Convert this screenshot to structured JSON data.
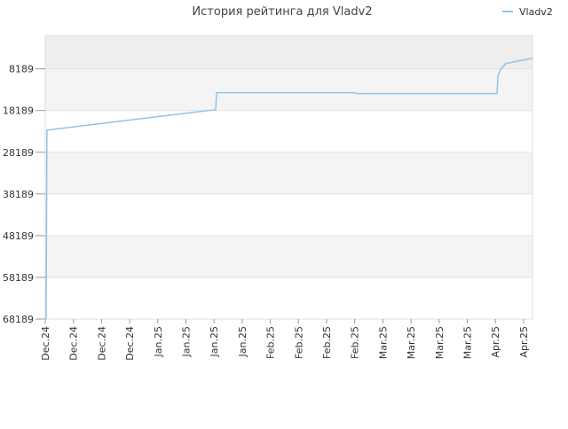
{
  "chart_data": {
    "type": "line",
    "title": "История рейтинга для Vladv2",
    "categories": [
      "Dec.24",
      "Dec.24",
      "Dec.24",
      "Dec.24",
      "Jan.25",
      "Jan.25",
      "Jan.25",
      "Jan.25",
      "Feb.25",
      "Feb.25",
      "Feb.25",
      "Feb.25",
      "Mar.25",
      "Mar.25",
      "Mar.25",
      "Mar.25",
      "Apr.25",
      "Apr.25"
    ],
    "xlim": [
      0,
      17.32
    ],
    "series": [
      {
        "name": "Vladv2",
        "color": "#90c3ea",
        "x": [
          0.03,
          0.06,
          6.06,
          6.09,
          11.01,
          11.07,
          16.06,
          16.09,
          16.18,
          16.37,
          17.32
        ],
        "values": [
          68189,
          22870,
          17976,
          13934,
          13934,
          14146,
          14146,
          9891,
          8402,
          6912,
          5636
        ]
      }
    ],
    "ylim": [
      68189,
      189
    ],
    "yticks": [
      8189,
      18189,
      28189,
      38189,
      48189,
      58189,
      68189
    ],
    "grid": true,
    "legend": "top-right"
  }
}
